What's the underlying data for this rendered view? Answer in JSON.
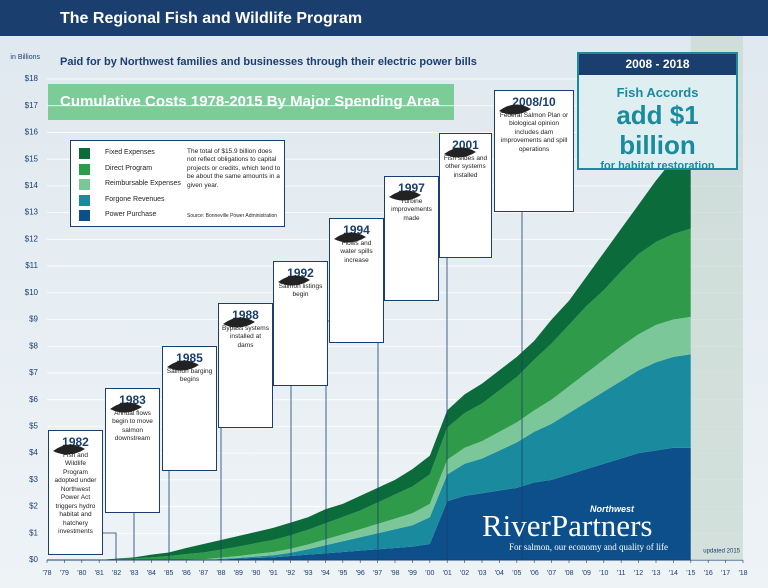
{
  "header": {
    "title": "The Regional Fish and Wildlife Program"
  },
  "chart_data": {
    "type": "stacked-area",
    "subtitle": "Paid for by Northwest families and businesses through their electric power bills",
    "title": "Cumulative Costs 1978-2015 By Major Spending Area",
    "y_label": "in Billions",
    "x": [
      1978,
      1979,
      1980,
      1981,
      1982,
      1983,
      1984,
      1985,
      1986,
      1987,
      1988,
      1989,
      1990,
      1991,
      1992,
      1993,
      1994,
      1995,
      1996,
      1997,
      1998,
      1999,
      2000,
      2001,
      2002,
      2003,
      2004,
      2005,
      2006,
      2007,
      2008,
      2009,
      2010,
      2011,
      2012,
      2013,
      2014,
      2015
    ],
    "series": [
      {
        "name": "Power Purchase",
        "color": "#0d4f8a",
        "values": [
          0,
          0,
          0,
          0,
          0,
          0,
          0,
          0,
          0,
          0,
          0.02,
          0.05,
          0.08,
          0.1,
          0.15,
          0.2,
          0.25,
          0.3,
          0.35,
          0.4,
          0.45,
          0.5,
          0.6,
          2.2,
          2.4,
          2.5,
          2.6,
          2.7,
          2.9,
          3.0,
          3.2,
          3.4,
          3.6,
          3.8,
          4.0,
          4.1,
          4.2,
          4.2
        ]
      },
      {
        "name": "Forgone Revenues",
        "color": "#1a8a9e",
        "values": [
          0,
          0,
          0,
          0,
          0,
          0,
          0,
          0,
          0,
          0,
          0.02,
          0.03,
          0.05,
          0.08,
          0.12,
          0.2,
          0.3,
          0.4,
          0.5,
          0.6,
          0.7,
          0.8,
          1.0,
          1.0,
          1.2,
          1.3,
          1.5,
          1.7,
          1.9,
          2.1,
          2.3,
          2.5,
          2.7,
          2.9,
          3.1,
          3.3,
          3.4,
          3.5
        ]
      },
      {
        "name": "Reimbursable Expenses",
        "color": "#7cc79a",
        "values": [
          0,
          0,
          0,
          0,
          0,
          0,
          0,
          0,
          0.02,
          0.03,
          0.05,
          0.07,
          0.1,
          0.12,
          0.15,
          0.18,
          0.22,
          0.26,
          0.3,
          0.35,
          0.4,
          0.45,
          0.5,
          0.55,
          0.6,
          0.65,
          0.7,
          0.75,
          0.8,
          0.9,
          1.0,
          1.1,
          1.2,
          1.3,
          1.35,
          1.4,
          1.4,
          1.4
        ]
      },
      {
        "name": "Direct Program",
        "color": "#2e9a4a",
        "values": [
          0,
          0,
          0,
          0,
          0.03,
          0.06,
          0.1,
          0.15,
          0.2,
          0.25,
          0.3,
          0.35,
          0.4,
          0.45,
          0.5,
          0.55,
          0.6,
          0.65,
          0.7,
          0.8,
          0.9,
          1.0,
          1.1,
          1.2,
          1.3,
          1.4,
          1.55,
          1.7,
          1.9,
          2.1,
          2.3,
          2.5,
          2.6,
          2.8,
          3.0,
          3.1,
          3.2,
          3.3
        ]
      },
      {
        "name": "Fixed Expenses",
        "color": "#0c6b3a",
        "values": [
          0,
          0,
          0,
          0,
          0.02,
          0.04,
          0.1,
          0.13,
          0.23,
          0.32,
          0.36,
          0.4,
          0.42,
          0.45,
          0.48,
          0.47,
          0.53,
          0.49,
          0.55,
          0.55,
          0.55,
          0.65,
          0.7,
          0.65,
          0.7,
          0.75,
          0.75,
          0.75,
          0.7,
          0.9,
          0.9,
          1.1,
          1.4,
          1.6,
          1.85,
          2.3,
          2.8,
          3.5
        ]
      }
    ],
    "legend_order": [
      4,
      3,
      2,
      1,
      0
    ],
    "legend_note": "The total of $15.9 billion does not reflect obligations to capital projects or credits, which tend to be about the same amounts in a given year.",
    "source": "Source: Bonneville Power Administration",
    "xlim": [
      1978,
      2018
    ],
    "xticks": [
      {
        "value": 1978,
        "label": "'78"
      },
      {
        "value": 1979,
        "label": "'79"
      },
      {
        "value": 1980,
        "label": "'80"
      },
      {
        "value": 1981,
        "label": "'81"
      },
      {
        "value": 1982,
        "label": "'82"
      },
      {
        "value": 1983,
        "label": "'83"
      },
      {
        "value": 1984,
        "label": "'84"
      },
      {
        "value": 1985,
        "label": "'85"
      },
      {
        "value": 1986,
        "label": "'86"
      },
      {
        "value": 1987,
        "label": "'87"
      },
      {
        "value": 1988,
        "label": "'88"
      },
      {
        "value": 1989,
        "label": "'89"
      },
      {
        "value": 1990,
        "label": "'90"
      },
      {
        "value": 1991,
        "label": "'91"
      },
      {
        "value": 1992,
        "label": "'92"
      },
      {
        "value": 1993,
        "label": "'93"
      },
      {
        "value": 1994,
        "label": "'94"
      },
      {
        "value": 1995,
        "label": "'95"
      },
      {
        "value": 1996,
        "label": "'96"
      },
      {
        "value": 1997,
        "label": "'97"
      },
      {
        "value": 1998,
        "label": "'98"
      },
      {
        "value": 1999,
        "label": "'99"
      },
      {
        "value": 2000,
        "label": "'00"
      },
      {
        "value": 2001,
        "label": "'01"
      },
      {
        "value": 2002,
        "label": "'02"
      },
      {
        "value": 2003,
        "label": "'03"
      },
      {
        "value": 2004,
        "label": "'04"
      },
      {
        "value": 2005,
        "label": "'05"
      },
      {
        "value": 2006,
        "label": "'06"
      },
      {
        "value": 2007,
        "label": "'07"
      },
      {
        "value": 2008,
        "label": "'08"
      },
      {
        "value": 2009,
        "label": "'09"
      },
      {
        "value": 2010,
        "label": "'10"
      },
      {
        "value": 2011,
        "label": "'11"
      },
      {
        "value": 2012,
        "label": "'12"
      },
      {
        "value": 2013,
        "label": "'13"
      },
      {
        "value": 2014,
        "label": "'14"
      },
      {
        "value": 2015,
        "label": "'15"
      },
      {
        "value": 2016,
        "label": "'16"
      },
      {
        "value": 2017,
        "label": "'17"
      },
      {
        "value": 2018,
        "label": "'18"
      }
    ],
    "ylim": [
      0,
      18
    ],
    "yticks": [
      {
        "value": 0,
        "label": "$0"
      },
      {
        "value": 1,
        "label": "$1"
      },
      {
        "value": 2,
        "label": "$2"
      },
      {
        "value": 3,
        "label": "$3"
      },
      {
        "value": 4,
        "label": "$4"
      },
      {
        "value": 5,
        "label": "$5"
      },
      {
        "value": 6,
        "label": "$6"
      },
      {
        "value": 7,
        "label": "$7"
      },
      {
        "value": 8,
        "label": "$8"
      },
      {
        "value": 9,
        "label": "$9"
      },
      {
        "value": 10,
        "label": "$10"
      },
      {
        "value": 11,
        "label": "$11"
      },
      {
        "value": 12,
        "label": "$12"
      },
      {
        "value": 13,
        "label": "$13"
      },
      {
        "value": 14,
        "label": "$14"
      },
      {
        "value": 15,
        "label": "$15"
      },
      {
        "value": 16,
        "label": "$16"
      },
      {
        "value": 17,
        "label": "$17"
      },
      {
        "value": 18,
        "label": "$18"
      }
    ],
    "annotations": [
      {
        "year": "1982",
        "text": "Fish and Wildlife Program adopted under Northwest Power Act triggers hydro habitat and hatchery investments"
      },
      {
        "year": "1983",
        "text": "Annual flows begin to move salmon downstream"
      },
      {
        "year": "1985",
        "text": "Salmon barging begins"
      },
      {
        "year": "1988",
        "text": "Bypass systems installed at dams"
      },
      {
        "year": "1992",
        "text": "Salmon listings begin"
      },
      {
        "year": "1994",
        "text": "Flows and water spills increase"
      },
      {
        "year": "1997",
        "text": "Turbine improvements made"
      },
      {
        "year": "2001",
        "text": "Fish slides and other systems installed"
      },
      {
        "year": "2008/10",
        "text": "Federal Salmon Plan or biological opinion includes dam improvements and spill operations"
      }
    ],
    "note": "updated 2015"
  },
  "accords": {
    "period": "2008 - 2018",
    "line1": "Fish Accords",
    "line2": "add $1 billion",
    "line3": "for habitat restoration"
  },
  "logo": {
    "small": "Northwest",
    "name": "RiverPartners",
    "tagline": "For salmon, our economy and quality of life"
  }
}
